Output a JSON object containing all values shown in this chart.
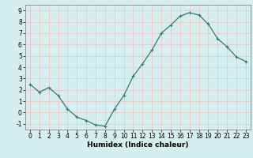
{
  "x": [
    0,
    1,
    2,
    3,
    4,
    5,
    6,
    7,
    8,
    9,
    10,
    11,
    12,
    13,
    14,
    15,
    16,
    17,
    18,
    19,
    20,
    21,
    22,
    23
  ],
  "y": [
    2.5,
    1.8,
    2.2,
    1.5,
    0.3,
    -0.4,
    -0.7,
    -1.1,
    -1.2,
    0.3,
    1.5,
    3.2,
    4.3,
    5.5,
    7.0,
    7.7,
    8.5,
    8.8,
    8.6,
    7.8,
    6.5,
    5.8,
    4.9,
    4.5
  ],
  "xlabel": "Humidex (Indice chaleur)",
  "xlim": [
    -0.5,
    23.5
  ],
  "ylim": [
    -1.5,
    9.5
  ],
  "yticks": [
    -1,
    0,
    1,
    2,
    3,
    4,
    5,
    6,
    7,
    8,
    9
  ],
  "xticks": [
    0,
    1,
    2,
    3,
    4,
    5,
    6,
    7,
    8,
    9,
    10,
    11,
    12,
    13,
    14,
    15,
    16,
    17,
    18,
    19,
    20,
    21,
    22,
    23
  ],
  "line_color": "#2e7d6e",
  "marker": "+",
  "bg_color": "#d6eeee",
  "grid_color": "#c8e0e0",
  "label_fontsize": 6.5,
  "tick_fontsize": 5.5,
  "linewidth": 0.9,
  "markersize": 3.5,
  "markeredgewidth": 0.8
}
